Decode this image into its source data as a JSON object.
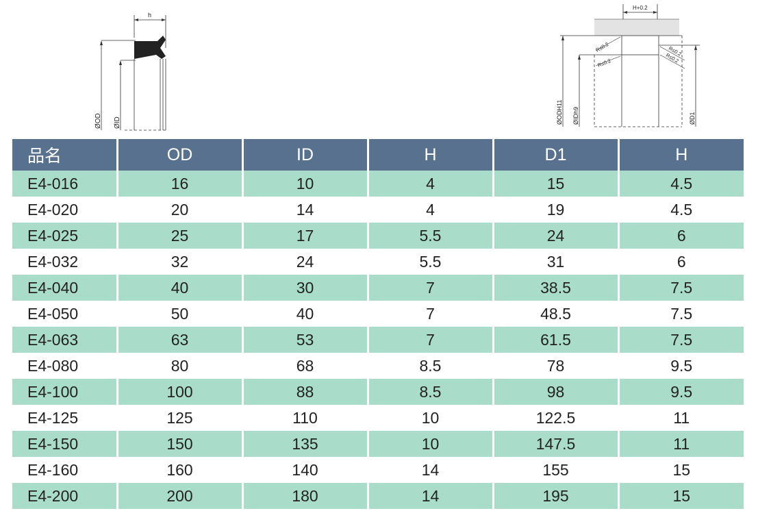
{
  "diagram_left": {
    "h_label": "h",
    "od_label": "ØOD",
    "id_label": "ØID"
  },
  "diagram_right": {
    "h_label": "H+0.2",
    "r_labels": [
      "R≤0.2",
      "R≤0.2",
      "R≤0.2",
      "R≤0.2"
    ],
    "od_label": "ØODH11",
    "id_label": "ØIDh9",
    "d1_label": "ØD1"
  },
  "table": {
    "headers": [
      "品名",
      "OD",
      "ID",
      "H",
      "D1",
      "H"
    ],
    "rows": [
      [
        "E4-016",
        "16",
        "10",
        "4",
        "15",
        "4.5"
      ],
      [
        "E4-020",
        "20",
        "14",
        "4",
        "19",
        "4.5"
      ],
      [
        "E4-025",
        "25",
        "17",
        "5.5",
        "24",
        "6"
      ],
      [
        "E4-032",
        "32",
        "24",
        "5.5",
        "31",
        "6"
      ],
      [
        "E4-040",
        "40",
        "30",
        "7",
        "38.5",
        "7.5"
      ],
      [
        "E4-050",
        "50",
        "40",
        "7",
        "48.5",
        "7.5"
      ],
      [
        "E4-063",
        "63",
        "53",
        "7",
        "61.5",
        "7.5"
      ],
      [
        "E4-080",
        "80",
        "68",
        "8.5",
        "78",
        "9.5"
      ],
      [
        "E4-100",
        "100",
        "88",
        "8.5",
        "98",
        "9.5"
      ],
      [
        "E4-125",
        "125",
        "110",
        "10",
        "122.5",
        "11"
      ],
      [
        "E4-150",
        "150",
        "135",
        "10",
        "147.5",
        "11"
      ],
      [
        "E4-160",
        "160",
        "140",
        "14",
        "155",
        "15"
      ],
      [
        "E4-200",
        "200",
        "180",
        "14",
        "195",
        "15"
      ]
    ]
  },
  "colors": {
    "header_bg": "#57718e",
    "row_alt_bg": "#a9ddc9"
  }
}
